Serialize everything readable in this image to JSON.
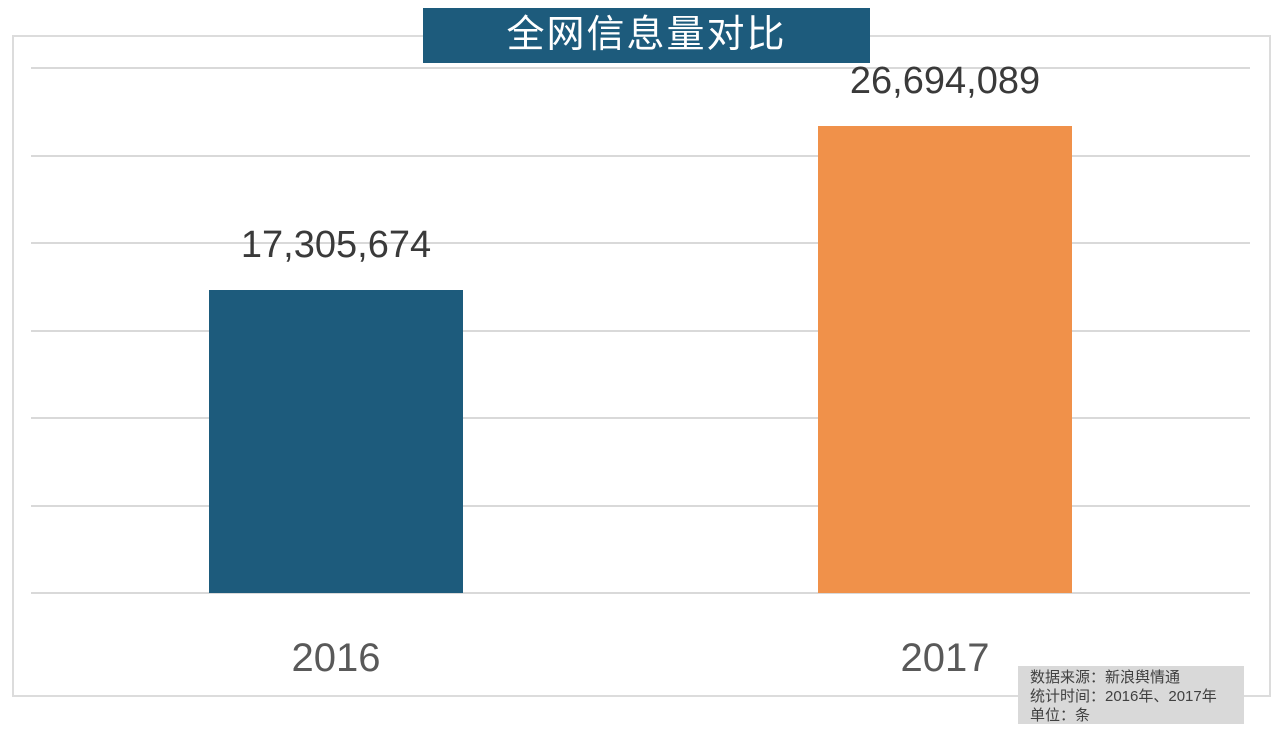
{
  "title_banner": {
    "text": "全网信息量对比",
    "bg_color": "#1d5b7c",
    "text_color": "#ffffff"
  },
  "chart_data": {
    "type": "bar",
    "title": "全网信息量对比",
    "categories": [
      "2016",
      "2017"
    ],
    "values": [
      17305674,
      26694089
    ],
    "value_labels": [
      "17,305,674",
      "26,694,089"
    ],
    "bar_colors": [
      "#1d5b7c",
      "#f0914a"
    ],
    "xlabel": "",
    "ylabel": "",
    "ylim": [
      0,
      30000000
    ],
    "gridline_step": 5000000,
    "grid": true,
    "legend": "none"
  },
  "source_note": {
    "line1": "数据来源：新浪舆情通",
    "line2": "统计时间：2016年、2017年",
    "line3": "单位：条"
  },
  "colors": {
    "gridline": "#d9d9d9",
    "frame_border": "#dcdcdc",
    "value_label_text": "#3a3a3a",
    "axis_label_text": "#595959",
    "note_bg": "#d9d9d9",
    "note_text": "#404040"
  }
}
